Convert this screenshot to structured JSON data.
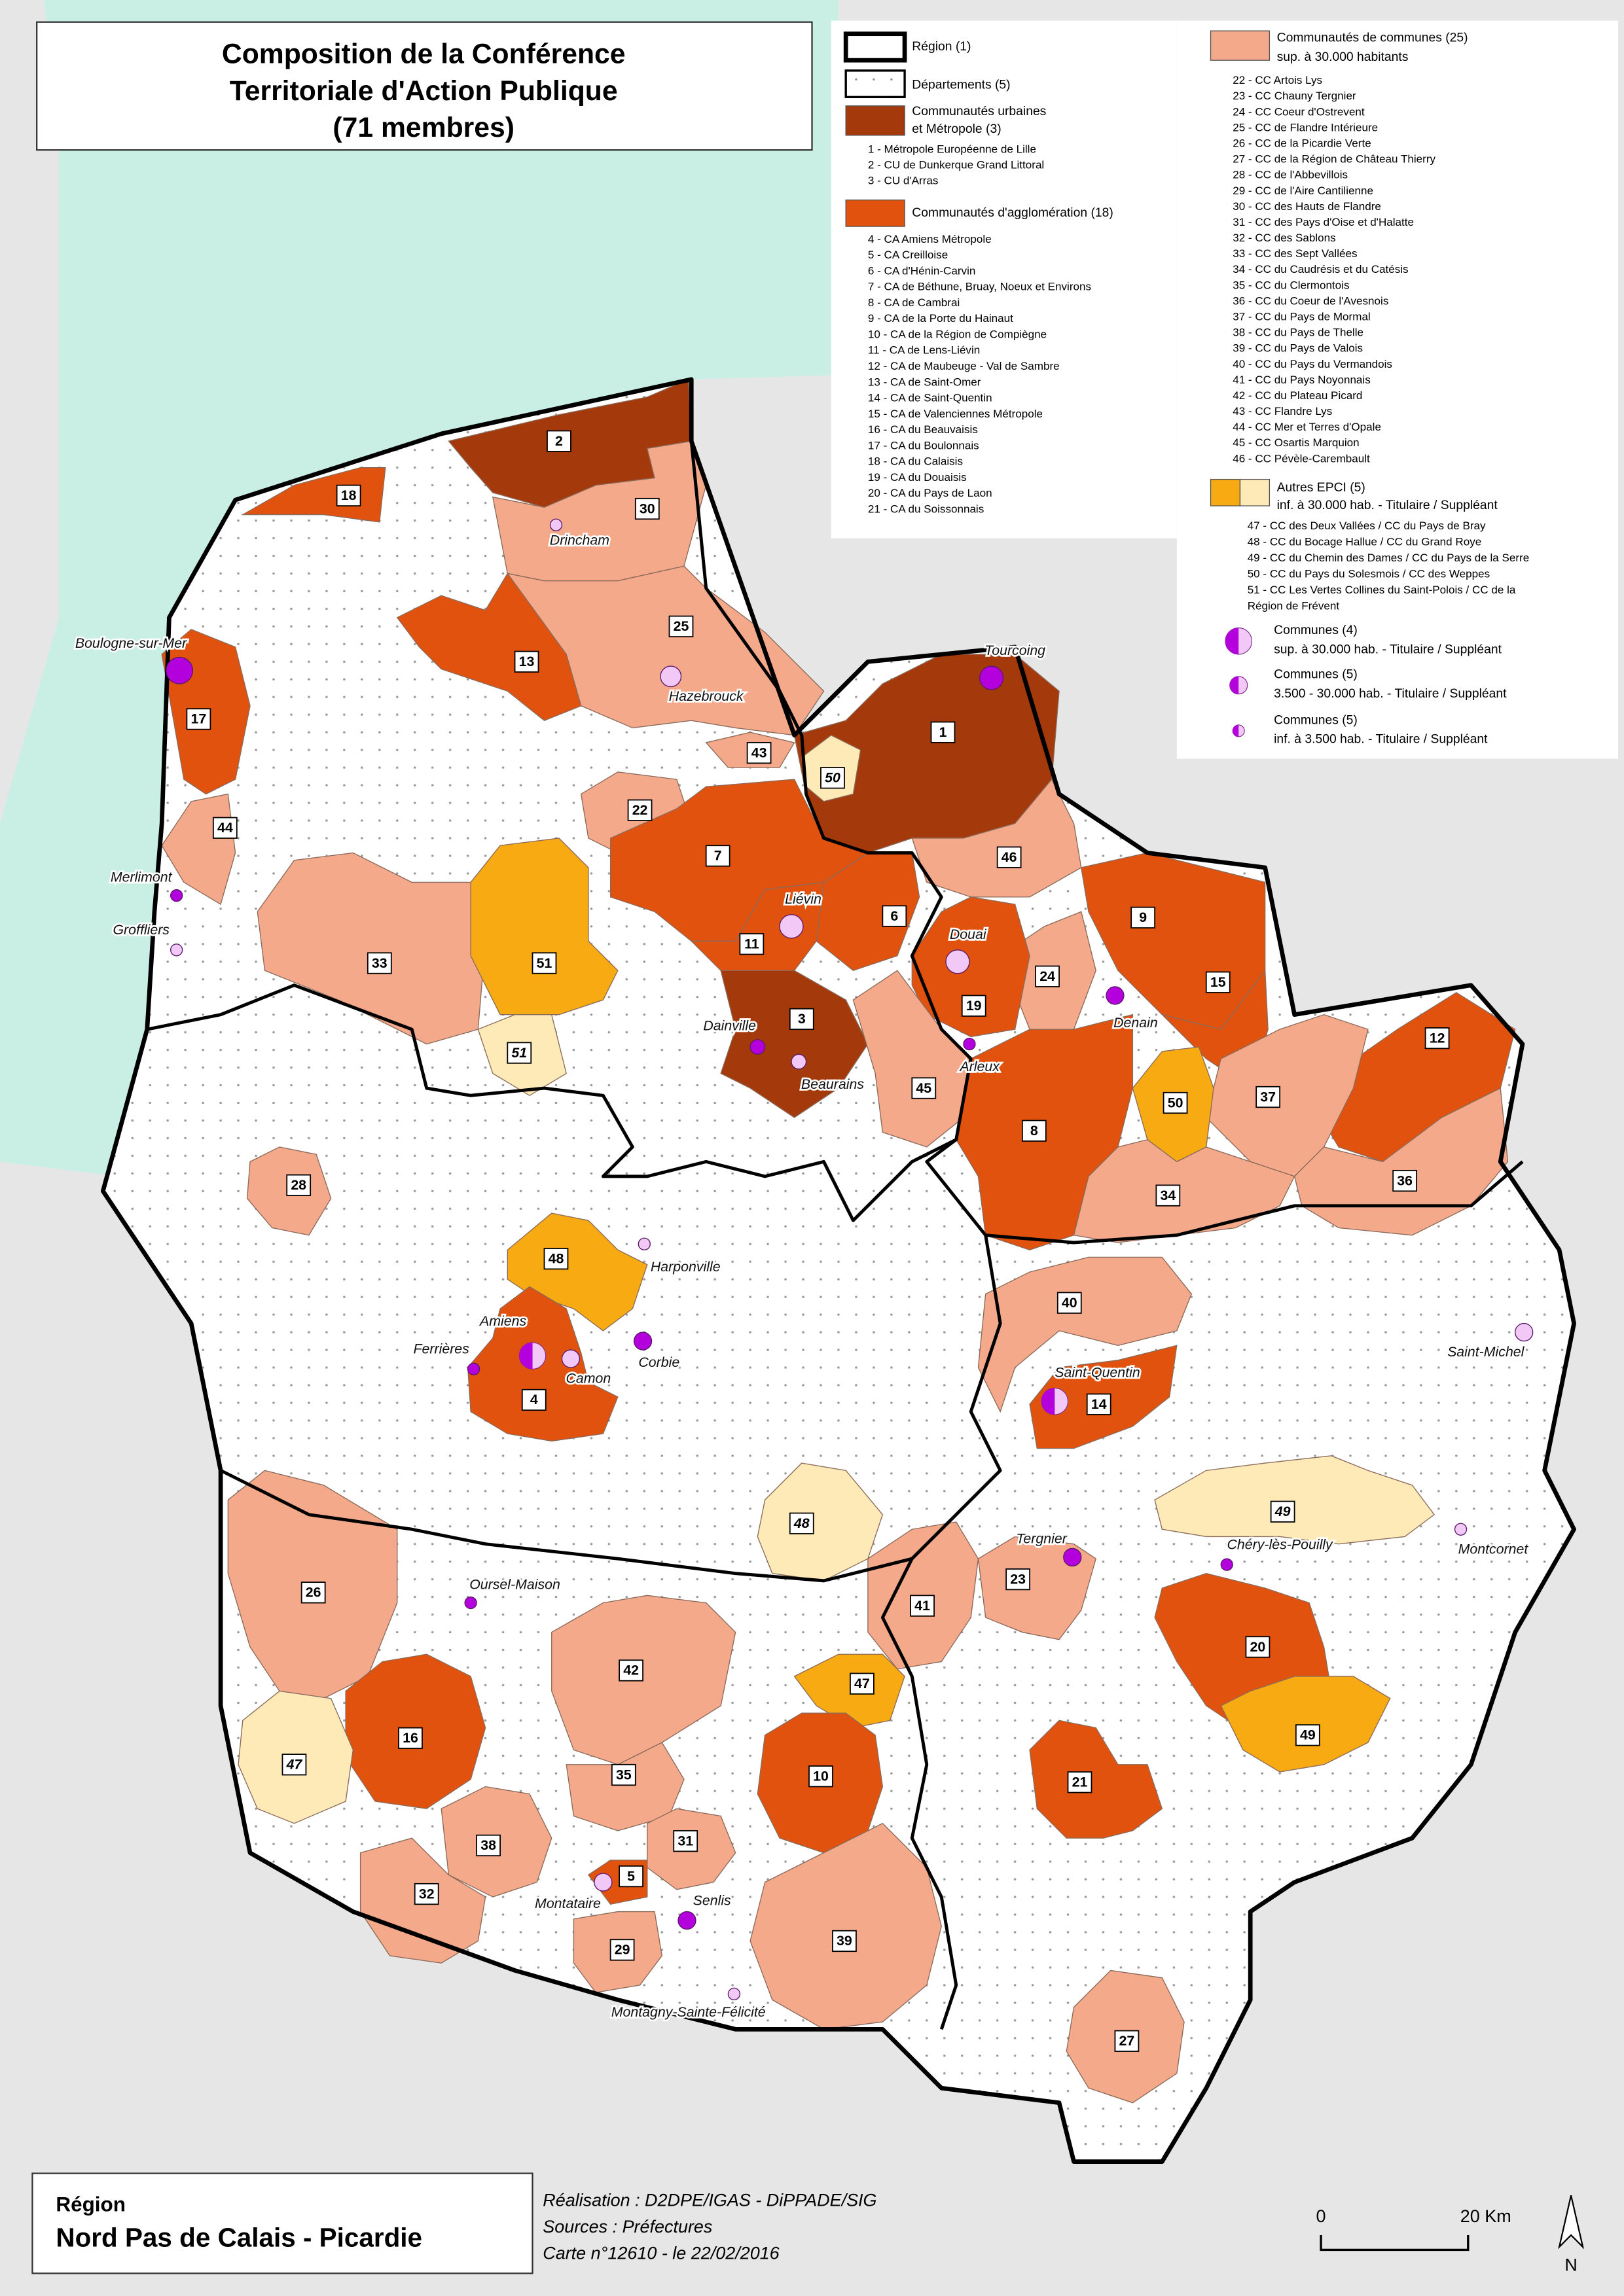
{
  "title": [
    "Composition de la Conférence",
    "Territoriale d'Action Publique",
    "(71 membres)"
  ],
  "legend": {
    "region": "Région (1)",
    "departements": "Départements (5)",
    "cu": {
      "label": [
        "Communautés urbaines",
        "et Métropole  (3)"
      ],
      "items": [
        "1 - Métropole Européenne de Lille",
        "2 - CU de Dunkerque Grand Littoral",
        "3 - CU d'Arras"
      ]
    },
    "ca": {
      "label": "Communautés d'agglomération (18)",
      "items": [
        "4 - CA Amiens Métropole",
        "5 - CA Creilloise",
        "6 - CA d'Hénin-Carvin",
        "7 - CA de Béthune, Bruay, Noeux et Environs",
        "8 - CA de Cambrai",
        "9 - CA de la Porte du Hainaut",
        "10 - CA de la Région de Compiègne",
        "11 - CA de Lens-Liévin",
        "12 - CA de Maubeuge - Val de Sambre",
        "13 - CA de Saint-Omer",
        "14 - CA de Saint-Quentin",
        "15 - CA de Valenciennes Métropole",
        "16 - CA du Beauvaisis",
        "17 - CA du Boulonnais",
        "18 - CA du Calaisis",
        "19 - CA du Douaisis",
        "20 - CA du Pays de Laon",
        "21 - CA du Soissonnais"
      ]
    },
    "cc": {
      "label": [
        "Communautés de communes (25)",
        "sup. à 30.000 habitants"
      ],
      "items": [
        "22 - CC Artois Lys",
        "23 - CC Chauny Tergnier",
        "24 - CC Coeur d'Ostrevent",
        "25 - CC de Flandre Intérieure",
        "26 - CC de la Picardie Verte",
        "27 - CC de la Région de Château Thierry",
        "28 - CC de l'Abbevillois",
        "29 - CC de l'Aire Cantilienne",
        "30 - CC des Hauts de Flandre",
        "31 - CC des Pays d'Oise et d'Halatte",
        "32 - CC des Sablons",
        "33 - CC des Sept Vallées",
        "34 - CC du Caudrésis et du Catésis",
        "35 - CC du Clermontois",
        "36 - CC du Coeur de l'Avesnois",
        "37 - CC du Pays de Mormal",
        "38 - CC du Pays de Thelle",
        "39 - CC du Pays de Valois",
        "40 - CC du Pays du Vermandois",
        "41 - CC du Pays Noyonnais",
        "42 - CC du Plateau Picard",
        "43 - CC Flandre Lys",
        "44 - CC Mer et Terres d'Opale",
        "45 - CC Osartis Marquion",
        "46 - CC Pévèle-Carembault"
      ]
    },
    "autres": {
      "label": [
        "Autres EPCI (5)",
        "inf. à 30.000 hab. - Titulaire / Suppléant"
      ],
      "items": [
        "47 - CC des Deux Vallées / CC du Pays de Bray",
        "48 - CC du Bocage Hallue / CC du Grand Roye",
        "49 - CC du Chemin des Dames / CC du Pays de la Serre",
        "50 - CC du Pays du Solesmois / CC des Weppes",
        "51 - CC Les Vertes Collines du Saint-Polois / CC de la",
        "Région de Frévent"
      ]
    },
    "communes": [
      [
        "Communes (4)",
        "sup. à 30.000 hab. -  Titulaire / Suppléant"
      ],
      [
        "Communes (5)",
        "3.500 - 30.000 hab. - Titulaire / Suppléant"
      ],
      [
        "Communes (5)",
        "inf. à 3.500 hab. - Titulaire / Suppléant"
      ]
    ]
  },
  "map": {
    "epci_labels": [
      "2",
      "30",
      "18",
      "25",
      "13",
      "17",
      "1",
      "50",
      "43",
      "22",
      "44",
      "7",
      "46",
      "9",
      "6",
      "11",
      "33",
      "51",
      "51",
      "24",
      "15",
      "19",
      "3",
      "12",
      "37",
      "50",
      "45",
      "8",
      "36",
      "28",
      "34",
      "48",
      "40",
      "4",
      "14",
      "48",
      "49",
      "23",
      "26",
      "41",
      "20",
      "42",
      "47",
      "49",
      "16",
      "47",
      "10",
      "21",
      "35",
      "31",
      "38",
      "5",
      "32",
      "29",
      "39",
      "27"
    ],
    "communes": [
      "Drincham",
      "Boulogne-sur-Mer",
      "Tourcoing",
      "Hazebrouck",
      "Merlimont",
      "Groffliers",
      "Liévin",
      "Douai",
      "Dainville",
      "Beaurains",
      "Arleux",
      "Denain",
      "Harponville",
      "Amiens",
      "Ferrières",
      "Camon",
      "Corbie",
      "Saint-Quentin",
      "Saint-Michel",
      "Tergnier",
      "Chéry-lès-Pouilly",
      "Montcornet",
      "Oursel-Maison",
      "Senlis",
      "Montataire",
      "Montagny-Sainte-Félicité"
    ]
  },
  "footer": {
    "region_label": "Région",
    "region_name": "Nord Pas de Calais - Picardie",
    "credits": [
      "Réalisation : D2DPE/IGAS - DiPPADE/SIG",
      "Sources : Préfectures",
      "Carte n°12610 - le 22/02/2016"
    ]
  },
  "scale": {
    "start": "0",
    "end": "20 Km"
  },
  "north": "N"
}
